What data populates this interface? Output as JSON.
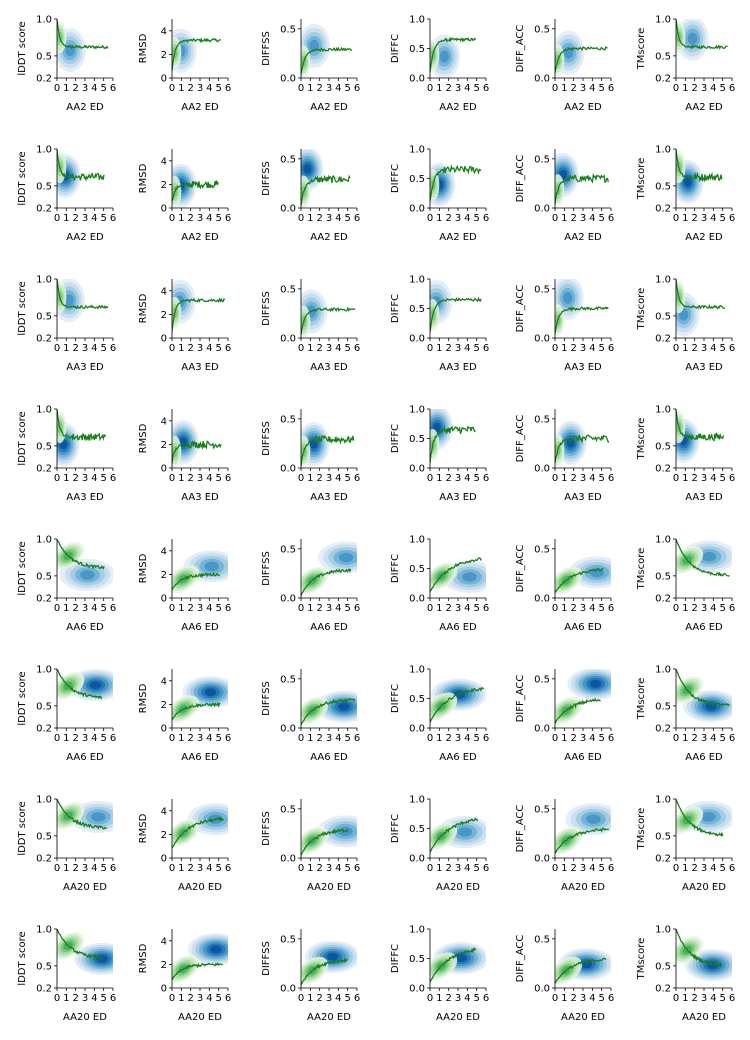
{
  "chart_data": {
    "type": "grid-of-kde-line-plots",
    "rows": [
      {
        "xlabel": "AA2 ED",
        "variant": "a"
      },
      {
        "xlabel": "AA2 ED",
        "variant": "b"
      },
      {
        "xlabel": "AA3 ED",
        "variant": "a"
      },
      {
        "xlabel": "AA3 ED",
        "variant": "b"
      },
      {
        "xlabel": "AA6 ED",
        "variant": "a"
      },
      {
        "xlabel": "AA6 ED",
        "variant": "b"
      },
      {
        "xlabel": "AA20 ED",
        "variant": "a"
      },
      {
        "xlabel": "AA20 ED",
        "variant": "b"
      }
    ],
    "x_ticks": [
      "0",
      "1",
      "2",
      "3",
      "4",
      "5",
      "6"
    ],
    "xlim": [
      0,
      6
    ],
    "columns": [
      {
        "ylabel": "lDDT score",
        "ylim": [
          0.2,
          1.0
        ],
        "yticks": [
          "0.2",
          "0.5",
          "1.0"
        ],
        "ytick_values": [
          0.2,
          0.5,
          1.0
        ]
      },
      {
        "ylabel": "RMSD",
        "ylim": [
          0,
          5
        ],
        "yticks": [
          "0",
          "2",
          "4"
        ],
        "ytick_values": [
          0,
          2,
          4
        ]
      },
      {
        "ylabel": "DIFFSS",
        "ylim": [
          0,
          0.6
        ],
        "yticks": [
          "0.0",
          "0.5"
        ],
        "ytick_values": [
          0.0,
          0.5
        ]
      },
      {
        "ylabel": "DIFFC",
        "ylim": [
          0,
          1.0
        ],
        "yticks": [
          "0.0",
          "0.5",
          "1.0"
        ],
        "ytick_values": [
          0.0,
          0.5,
          1.0
        ]
      },
      {
        "ylabel": "DIFF_ACC",
        "ylim": [
          0,
          0.6
        ],
        "yticks": [
          "0.0",
          "0.5"
        ],
        "ytick_values": [
          0.0,
          0.5
        ]
      },
      {
        "ylabel": "TMscore",
        "ylim": [
          0.2,
          1.0
        ],
        "yticks": [
          "0.2",
          "0.5",
          "1.0"
        ],
        "ytick_values": [
          0.2,
          0.5,
          1.0
        ]
      }
    ],
    "line_color": "#1a7f1a",
    "density_colors": {
      "blue": "#08519c",
      "green": "#238b45"
    },
    "grid": false,
    "legend": "none"
  }
}
